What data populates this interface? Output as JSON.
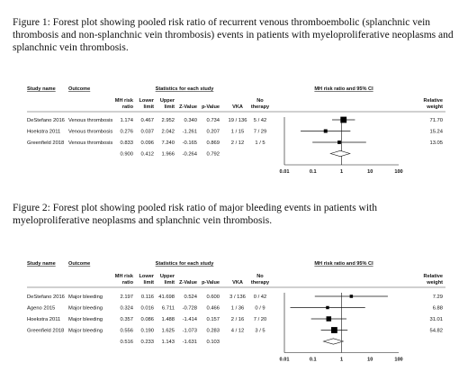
{
  "figures": [
    {
      "caption": "Figure 1: Forest plot showing pooled risk ratio of recurrent venous thromboembolic (splanchnic vein thrombosis and non-splanchnic vein thrombosis) events in patients with myeloproliferative neoplasms and splanchnic vein thrombosis.",
      "header": {
        "study_name": "Study name",
        "outcome": "Outcome",
        "stats_group": "Statistics for each study",
        "plot_group": "MH risk ratio and 95% CI",
        "columns": [
          "MH risk ratio",
          "Lower limit",
          "Upper limit",
          "Z-Value",
          "p-Value",
          "VKA",
          "No therapy"
        ],
        "weight": "Relative weight"
      },
      "rows": [
        {
          "study": "DeStefano 2016",
          "outcome": "Venous thrombosis",
          "rr": "1.174",
          "lower": "0.467",
          "upper": "2.952",
          "z": "0.340",
          "p": "0.734",
          "vka": "19 / 136",
          "no_therapy": "5 / 42",
          "weight": "71.70"
        },
        {
          "study": "Hoekstra 2011",
          "outcome": "Venous thrombosis",
          "rr": "0.276",
          "lower": "0.037",
          "upper": "2.042",
          "z": "-1.261",
          "p": "0.207",
          "vka": "1 / 15",
          "no_therapy": "7 / 29",
          "weight": "15.24"
        },
        {
          "study": "Greenfield 2018",
          "outcome": "Venous thrombosis",
          "rr": "0.833",
          "lower": "0.096",
          "upper": "7.240",
          "z": "-0.165",
          "p": "0.869",
          "vka": "2 / 12",
          "no_therapy": "1 / 5",
          "weight": "13.05"
        }
      ],
      "pooled": {
        "rr": "0.900",
        "lower": "0.412",
        "upper": "1.966",
        "z": "-0.264",
        "p": "0.792"
      },
      "axis_ticks": [
        "0.01",
        "0.1",
        "1",
        "10",
        "100"
      ]
    },
    {
      "caption": "Figure 2: Forest plot showing pooled risk ratio of major bleeding events in patients with myeloproliferative neoplasms and splanchnic vein thrombosis.",
      "header": {
        "study_name": "Study name",
        "outcome": "Outcome",
        "stats_group": "Statistics for each study",
        "plot_group": "MH risk ratio and 95% CI",
        "columns": [
          "MH risk ratio",
          "Lower limit",
          "Upper limit",
          "Z-Value",
          "p-Value",
          "VKA",
          "No therapy"
        ],
        "weight": "Relative weight"
      },
      "rows": [
        {
          "study": "DeStefano 2016",
          "outcome": "Major bleeding",
          "rr": "2.197",
          "lower": "0.116",
          "upper": "41.698",
          "z": "0.524",
          "p": "0.600",
          "vka": "3 / 136",
          "no_therapy": "0 / 42",
          "weight": "7.29"
        },
        {
          "study": "Ageno 2015",
          "outcome": "Major bleeding",
          "rr": "0.324",
          "lower": "0.016",
          "upper": "6.711",
          "z": "-0.728",
          "p": "0.466",
          "vka": "1 / 36",
          "no_therapy": "0 / 9",
          "weight": "6.88"
        },
        {
          "study": "Hoekstra 2011",
          "outcome": "Major bleeding",
          "rr": "0.357",
          "lower": "0.086",
          "upper": "1.488",
          "z": "-1.414",
          "p": "0.157",
          "vka": "2 / 16",
          "no_therapy": "7 / 20",
          "weight": "31.01"
        },
        {
          "study": "Greenfield 2018",
          "outcome": "Major bleeding",
          "rr": "0.556",
          "lower": "0.190",
          "upper": "1.625",
          "z": "-1.073",
          "p": "0.283",
          "vka": "4 / 12",
          "no_therapy": "3 / 5",
          "weight": "54.82"
        }
      ],
      "pooled": {
        "rr": "0.516",
        "lower": "0.233",
        "upper": "1.143",
        "z": "-1.631",
        "p": "0.103"
      },
      "axis_ticks": [
        "0.01",
        "0.1",
        "1",
        "10",
        "100"
      ]
    }
  ]
}
